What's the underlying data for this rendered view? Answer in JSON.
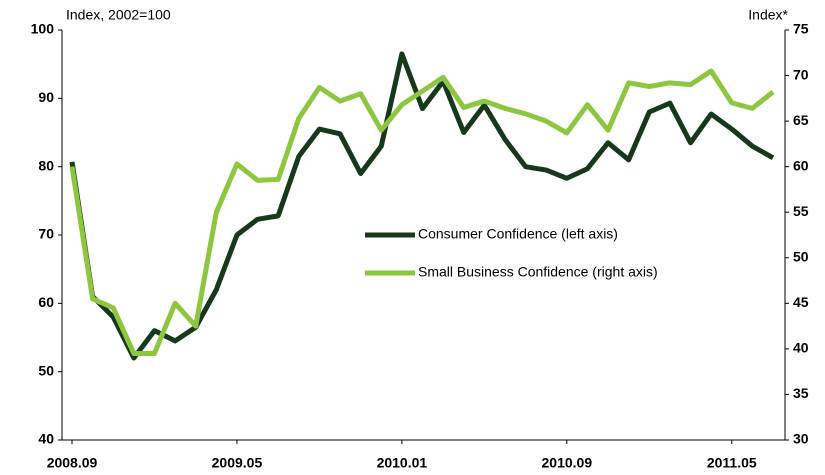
{
  "chart_data": {
    "type": "line",
    "y_label": "Index, 2002=100",
    "y2_label": "Index*",
    "categories": [
      "2008.09",
      null,
      null,
      null,
      null,
      null,
      null,
      null,
      "2009.05",
      null,
      null,
      null,
      null,
      null,
      null,
      null,
      "2010.01",
      null,
      null,
      null,
      null,
      null,
      null,
      null,
      "2010.09",
      null,
      null,
      null,
      null,
      null,
      null,
      null,
      "2011.05",
      null,
      null
    ],
    "series": [
      {
        "name": "Consumer Confidence (left axis)",
        "color": "#16391b",
        "values": [
          80.7,
          61,
          58,
          52,
          56,
          54.5,
          56.5,
          62,
          70,
          72.3,
          72.8,
          81.5,
          85.5,
          84.8,
          79,
          83,
          96.5,
          88.5,
          92.5,
          85,
          89,
          84,
          80,
          79.5,
          78.3,
          79.7,
          83.5,
          81,
          88,
          89.3,
          83.5,
          87.7,
          85.5,
          83,
          81.3
        ]
      },
      {
        "name": "Small Business Confidence (right axis)",
        "color": "#8dc63f",
        "axis": "y2",
        "values": [
          60,
          45.5,
          44.5,
          39.5,
          39.5,
          45,
          42.5,
          55,
          60.3,
          58.5,
          58.6,
          65.3,
          68.7,
          67.2,
          68,
          64,
          66.8,
          68.3,
          69.8,
          66.5,
          67.2,
          66.4,
          65.8,
          65,
          63.7,
          66.8,
          64,
          69.2,
          68.8,
          69.2,
          69,
          70.5,
          67,
          66.4,
          68.2
        ]
      }
    ],
    "ylim": [
      40,
      100
    ],
    "yticks": [
      40,
      50,
      60,
      70,
      80,
      90,
      100
    ],
    "y2lim": [
      30,
      75
    ],
    "y2ticks": [
      30,
      35,
      40,
      45,
      50,
      55,
      60,
      65,
      70,
      75
    ]
  }
}
